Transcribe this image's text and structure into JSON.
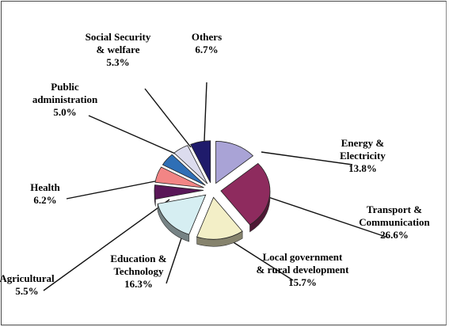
{
  "chart_data": {
    "type": "pie",
    "style": "3d-exploded",
    "slices": [
      {
        "name": "Energy &\nElectricity",
        "value_label": "13.8%",
        "value": 13.8,
        "color": "#a9a3d6"
      },
      {
        "name": "Transport &\nCommunication",
        "value_label": "26.6%",
        "value": 26.6,
        "color": "#8e2b5e"
      },
      {
        "name": "Local government\n& rural development",
        "value_label": "15.7%",
        "value": 15.7,
        "color": "#f3efc7"
      },
      {
        "name": "Education &\nTechnology",
        "value_label": "16.3%",
        "value": 16.3,
        "color": "#d6eef2"
      },
      {
        "name": "Agricultural",
        "value_label": "5.5%",
        "value": 5.5,
        "color": "#5a1758"
      },
      {
        "name": "Health",
        "value_label": "6.2%",
        "value": 6.2,
        "color": "#f28585"
      },
      {
        "name": "Public\nadministration",
        "value_label": "5.0%",
        "value": 5.0,
        "color": "#2f6fb6"
      },
      {
        "name": "Social Security\n& welfare",
        "value_label": "5.3%",
        "value": 5.3,
        "color": "#dcdcee"
      },
      {
        "name": "Others",
        "value_label": "6.7%",
        "value": 6.7,
        "color": "#1f1b6b"
      }
    ]
  }
}
